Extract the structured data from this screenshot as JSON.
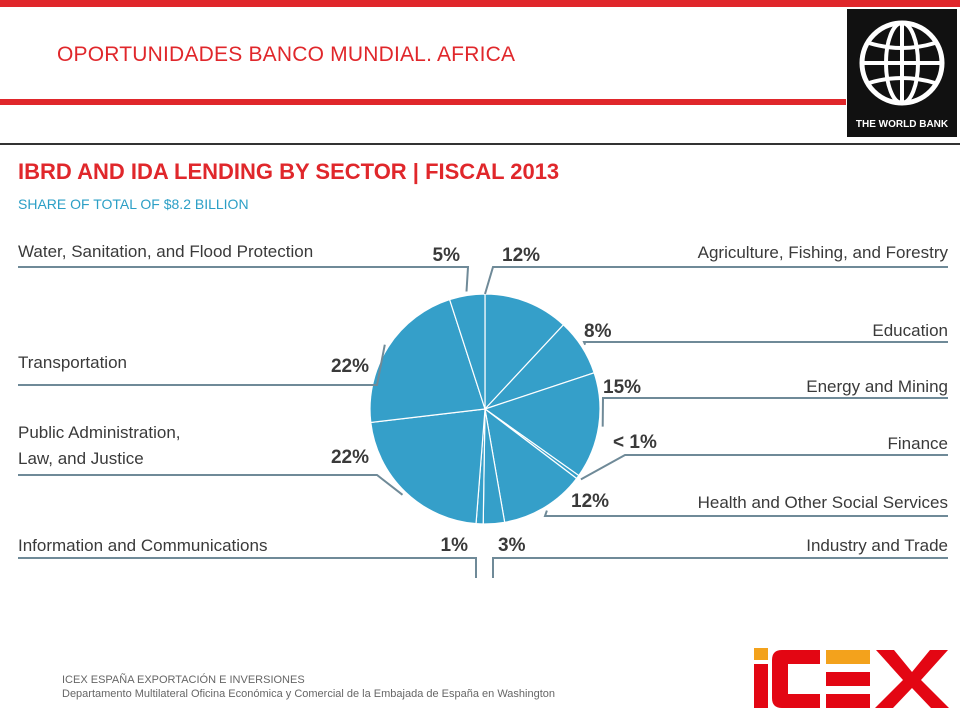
{
  "slide": {
    "title": "OPORTUNIDADES BANCO MUNDIAL. AFRICA",
    "logo_text": "THE WORLD BANK",
    "footer_line1": "ICEX ESPAÑA EXPORTACIÓN  E INVERSIONES",
    "footer_line2": "Departamento Multilateral Oficina Económica y Comercial de la Embajada de España en Washington",
    "brand_logo_text": "ICEX"
  },
  "colors": {
    "accent_red": "#e0272b",
    "chart_title": "#e0272b",
    "subtitle": "#2b9fc6",
    "pie_fill": "#359fc9",
    "label_text": "#3a3a3a",
    "icex_orange": "#f3a21c",
    "icex_red": "#e30613"
  },
  "chart_data": {
    "type": "pie",
    "title": "IBRD AND IDA LENDING BY SECTOR  |  FISCAL 2013",
    "subtitle": "SHARE OF TOTAL OF $8.2 BILLION",
    "slices": [
      {
        "label": "Agriculture, Fishing, and Forestry",
        "value": 12,
        "display": "12%",
        "side": "right"
      },
      {
        "label": "Education",
        "value": 8,
        "display": "8%",
        "side": "right"
      },
      {
        "label": "Energy and Mining",
        "value": 15,
        "display": "15%",
        "side": "right"
      },
      {
        "label": "Finance",
        "value": 0.5,
        "display": "< 1%",
        "side": "right"
      },
      {
        "label": "Health and Other Social Services",
        "value": 12,
        "display": "12%",
        "side": "right"
      },
      {
        "label": "Industry and Trade",
        "value": 3,
        "display": "3%",
        "side": "right"
      },
      {
        "label": "Information and Communications",
        "value": 1,
        "display": "1%",
        "side": "left"
      },
      {
        "label": "Public Administration, Law, and Justice",
        "value": 22,
        "display": "22%",
        "side": "left"
      },
      {
        "label": "Transportation",
        "value": 22,
        "display": "22%",
        "side": "left"
      },
      {
        "label": "Water, Sanitation, and Flood Protection",
        "value": 5,
        "display": "5%",
        "side": "left"
      }
    ]
  }
}
